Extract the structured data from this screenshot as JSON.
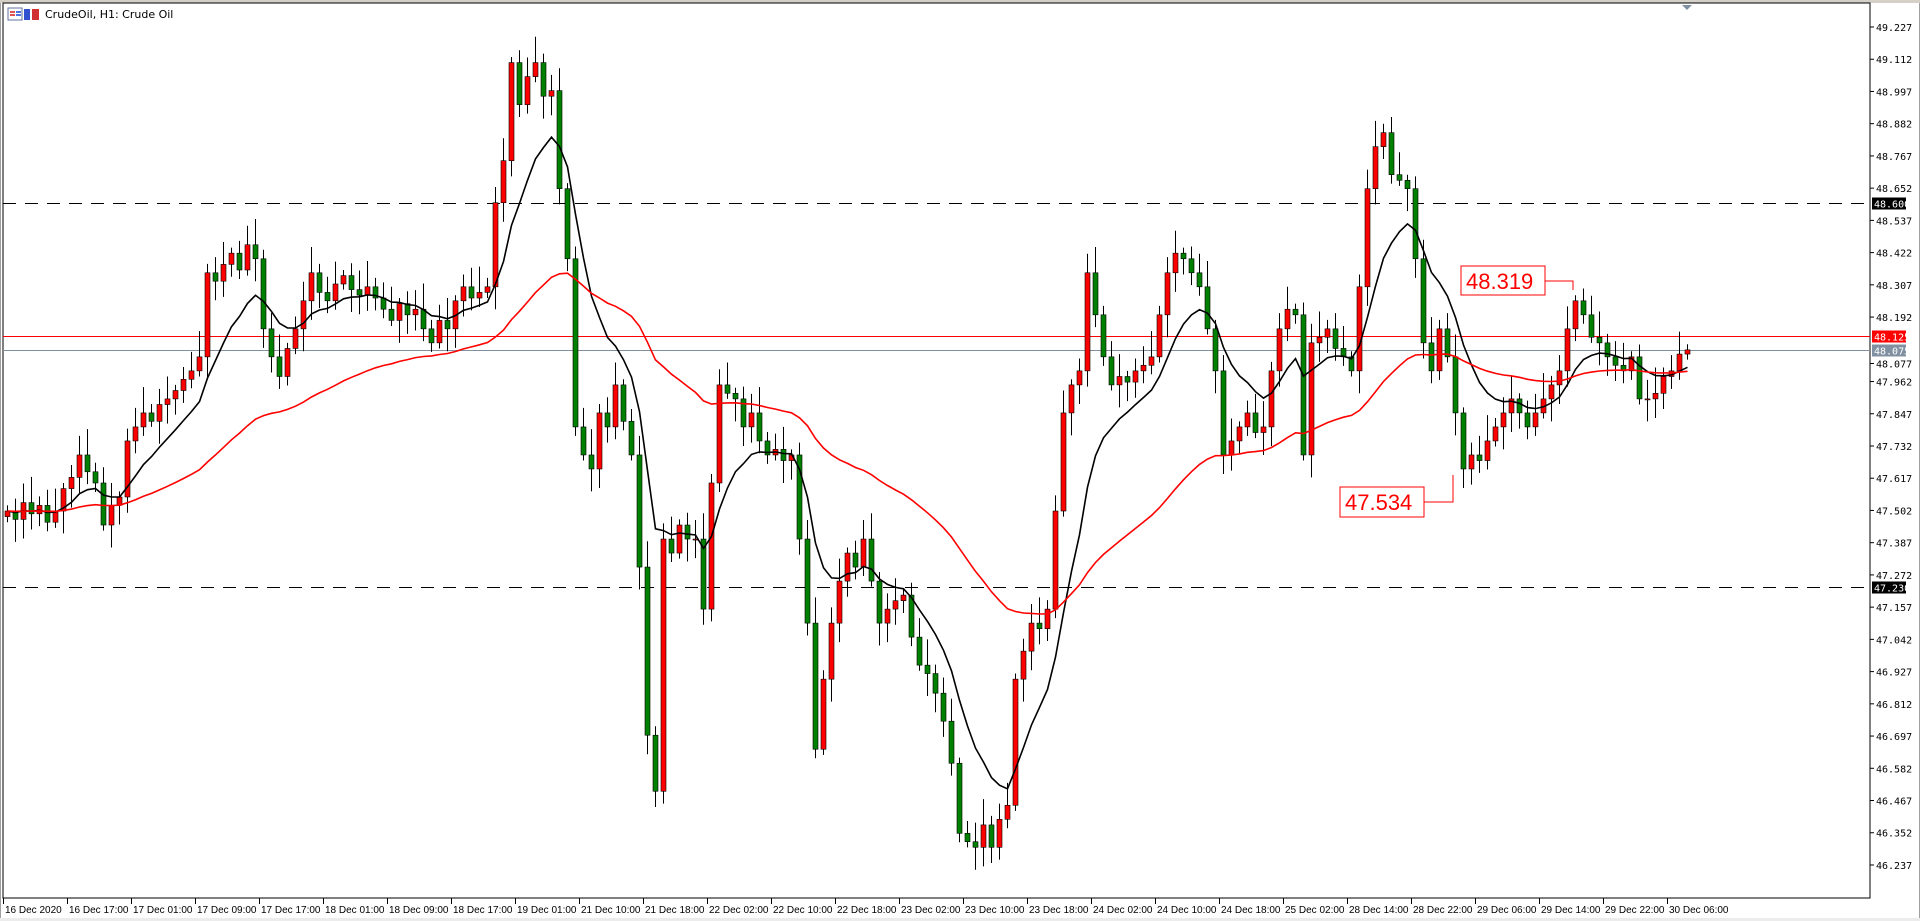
{
  "window": {
    "title": "CrudeOil, H1:  Crude Oil",
    "icons": [
      "chart-window-icon",
      "template-icon"
    ]
  },
  "colors": {
    "bull": "#ff0000",
    "bear": "#008000",
    "fast_ma": "#000000",
    "slow_ma": "#ff0000",
    "support_resistance": "#000000",
    "bid_line": "#ff0000",
    "ask_line": "#8090a0"
  },
  "chart_data": {
    "type": "candlestick",
    "symbol": "CrudeOil",
    "timeframe": "H1",
    "ylim": [
      46.18,
      49.3
    ],
    "y_ticks": [
      "49.227",
      "49.112",
      "48.997",
      "48.882",
      "48.767",
      "48.652",
      "48.537",
      "48.422",
      "48.307",
      "48.192",
      "48.077",
      "47.962",
      "47.847",
      "47.732",
      "47.617",
      "47.502",
      "47.387",
      "47.272",
      "47.157",
      "47.042",
      "46.927",
      "46.812",
      "46.697",
      "46.582",
      "46.467",
      "46.352",
      "46.237"
    ],
    "x_ticks": [
      "16 Dec 2020",
      "16 Dec 17:00",
      "17 Dec 01:00",
      "17 Dec 09:00",
      "17 Dec 17:00",
      "18 Dec 01:00",
      "18 Dec 09:00",
      "18 Dec 17:00",
      "19 Dec 01:00",
      "21 Dec 10:00",
      "21 Dec 18:00",
      "22 Dec 02:00",
      "22 Dec 10:00",
      "22 Dec 18:00",
      "23 Dec 02:00",
      "23 Dec 10:00",
      "23 Dec 18:00",
      "24 Dec 02:00",
      "24 Dec 10:00",
      "24 Dec 18:00",
      "25 Dec 02:00",
      "28 Dec 14:00",
      "28 Dec 22:00",
      "29 Dec 06:00",
      "29 Dec 14:00",
      "29 Dec 22:00",
      "30 Dec 06:00"
    ],
    "closes": [
      47.5,
      47.47,
      47.53,
      47.49,
      47.52,
      47.46,
      47.5,
      47.58,
      47.62,
      47.7,
      47.64,
      47.6,
      47.45,
      47.52,
      47.55,
      47.75,
      47.8,
      47.85,
      47.82,
      47.88,
      47.9,
      47.93,
      47.97,
      48.0,
      48.05,
      48.35,
      48.32,
      48.38,
      48.42,
      48.36,
      48.45,
      48.4,
      48.15,
      48.05,
      47.98,
      48.08,
      48.15,
      48.25,
      48.35,
      48.28,
      48.25,
      48.31,
      48.34,
      48.29,
      48.27,
      48.3,
      48.26,
      48.22,
      48.18,
      48.24,
      48.2,
      48.22,
      48.15,
      48.1,
      48.18,
      48.15,
      48.25,
      48.3,
      48.26,
      48.28,
      48.3,
      48.6,
      48.75,
      49.1,
      48.95,
      49.05,
      49.1,
      48.98,
      49.0,
      48.65,
      48.4,
      47.8,
      47.7,
      47.65,
      47.85,
      47.8,
      47.95,
      47.82,
      47.7,
      47.3,
      46.7,
      46.5,
      47.4,
      47.35,
      47.45,
      47.4,
      47.4,
      47.15,
      47.6,
      47.95,
      47.92,
      47.9,
      47.8,
      47.85,
      47.75,
      47.7,
      47.72,
      47.68,
      47.7,
      47.4,
      47.1,
      46.65,
      46.9,
      47.1,
      47.25,
      47.35,
      47.3,
      47.4,
      47.25,
      47.1,
      47.15,
      47.18,
      47.2,
      47.05,
      46.95,
      46.92,
      46.85,
      46.75,
      46.6,
      46.35,
      46.32,
      46.3,
      46.38,
      46.3,
      46.4,
      46.45,
      46.9,
      47.0,
      47.1,
      47.08,
      47.15,
      47.5,
      47.85,
      47.95,
      48.0,
      48.35,
      48.2,
      48.05,
      47.95,
      47.98,
      47.96,
      48.0,
      48.02,
      48.05,
      48.2,
      48.35,
      48.42,
      48.4,
      48.35,
      48.3,
      48.15,
      48.0,
      47.7,
      47.75,
      47.8,
      47.85,
      47.78,
      47.8,
      48.0,
      48.15,
      48.22,
      48.2,
      47.7,
      48.1,
      48.12,
      48.15,
      48.08,
      48.05,
      48.0,
      48.3,
      48.65,
      48.8,
      48.85,
      48.7,
      48.68,
      48.65,
      48.4,
      48.1,
      48.0,
      48.15,
      48.05,
      47.85,
      47.65,
      47.7,
      47.68,
      47.75,
      47.8,
      47.85,
      47.9,
      47.85,
      47.8,
      47.85,
      47.9,
      47.95,
      48.0,
      48.15,
      48.25,
      48.2,
      48.12,
      48.1,
      48.05,
      48.02,
      48.0,
      48.05,
      47.9,
      47.9,
      47.92,
      47.98,
      48.0,
      48.06,
      48.075
    ],
    "moving_averages": [
      {
        "color": "#000000",
        "period": 10
      },
      {
        "color": "#ff0000",
        "period": 50
      }
    ],
    "horizontal_levels": [
      {
        "price": 48.6,
        "label": "48.600",
        "style": "dashed",
        "color": "#000000"
      },
      {
        "price": 47.23,
        "label": "47.230",
        "style": "dashed",
        "color": "#000000"
      },
      {
        "price": 48.125,
        "label": "48.125",
        "style": "solid",
        "color": "#ff0000"
      },
      {
        "price": 48.075,
        "label": "48.075",
        "style": "solid",
        "color": "#8090a0"
      }
    ],
    "annotations": [
      {
        "text": "48.319",
        "price": 48.319
      },
      {
        "text": "47.534",
        "price": 47.534
      }
    ]
  }
}
